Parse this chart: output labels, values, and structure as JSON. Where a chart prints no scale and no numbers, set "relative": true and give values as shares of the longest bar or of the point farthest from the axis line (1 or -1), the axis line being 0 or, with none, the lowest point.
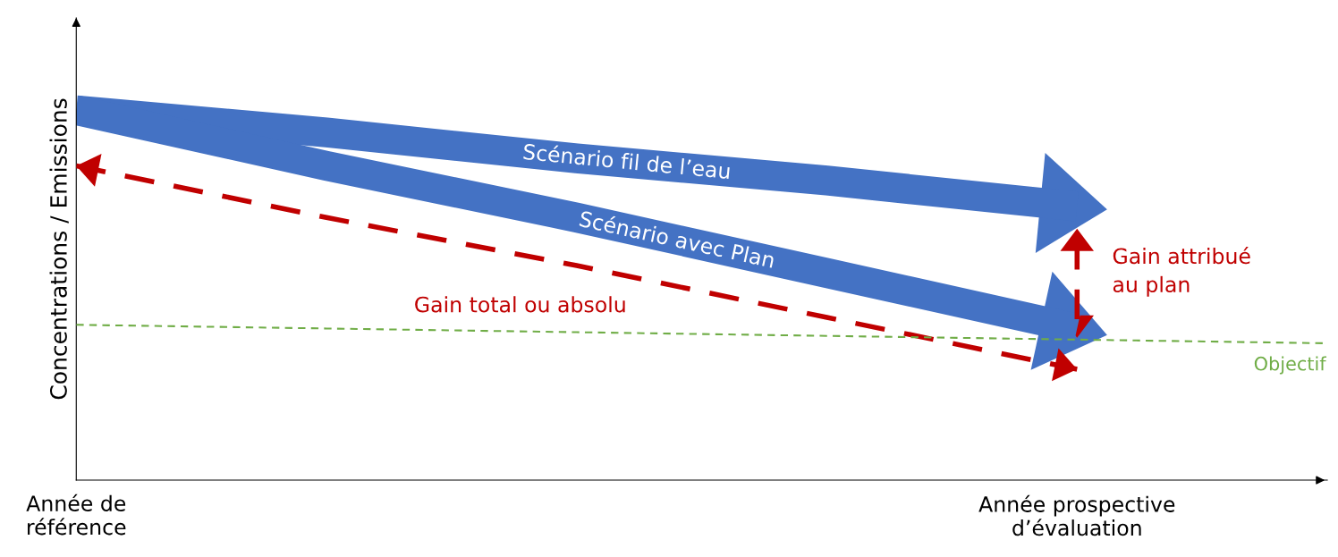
{
  "chart_data": {
    "type": "line",
    "relative": true,
    "ylabel": "Concentrations / Emissions",
    "categories": [
      "Année de\nréférence",
      null,
      null,
      null,
      "Année prospective\nd’évaluation",
      null
    ],
    "series": [
      {
        "name": "Scénario fil de l’eau",
        "color": "#4472c4",
        "line_style": "solid",
        "values": [
          1,
          0.94,
          0.87,
          0.81,
          0.74,
          null
        ]
      },
      {
        "name": "Scénario avec Plan",
        "color": "#4472c4",
        "line_style": "solid",
        "values": [
          1,
          0.85,
          0.71,
          0.56,
          0.41,
          null
        ]
      },
      {
        "name": "Gain total ou absolu",
        "color": "#c00000",
        "line_style": "dashed",
        "values": [
          0.85,
          0.71,
          0.58,
          0.44,
          0.3,
          null
        ]
      },
      {
        "name": "Objectif",
        "color": "#70ad47",
        "line_style": "dashed",
        "values": [
          0.42,
          0.41,
          0.4,
          0.39,
          0.38,
          0.37
        ]
      }
    ],
    "annotations": [
      "Gain attribué\nau plan"
    ],
    "grid": false,
    "legend": false
  }
}
